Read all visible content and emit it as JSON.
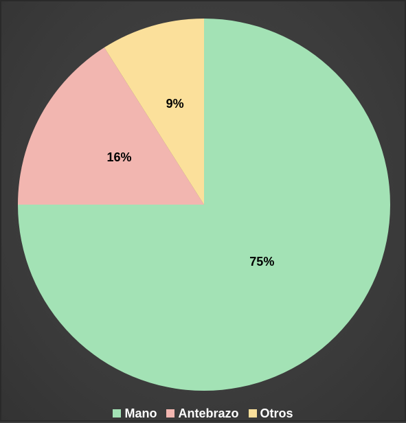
{
  "chart_data": {
    "type": "pie",
    "title": "",
    "slices": [
      {
        "label": "Mano",
        "value": 75,
        "display": "75%",
        "color": "#a3e2b5"
      },
      {
        "label": "Antebrazo",
        "value": 16,
        "display": "16%",
        "color": "#f2b6b0"
      },
      {
        "label": "Otros",
        "value": 9,
        "display": "9%",
        "color": "#fbe09b"
      }
    ],
    "legend_position": "bottom"
  }
}
